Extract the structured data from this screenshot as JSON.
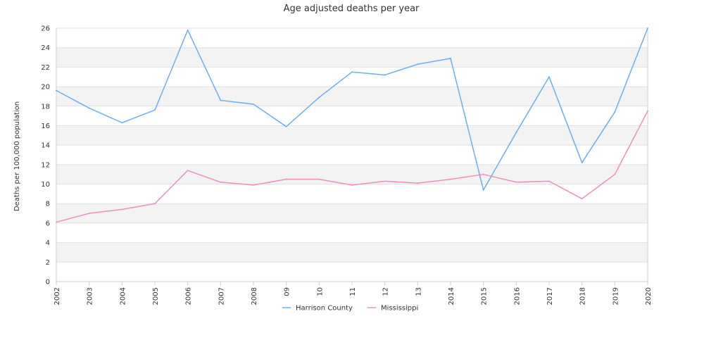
{
  "chart_data": {
    "type": "line",
    "title": "Age adjusted deaths per year",
    "xlabel": "",
    "ylabel": "Deaths per 100,000 population",
    "categories": [
      "2002",
      "2003",
      "2004",
      "2005",
      "2006",
      "2007",
      "2008",
      "09",
      "10",
      "11",
      "12",
      "13",
      "2014",
      "2015",
      "2016",
      "2017",
      "2018",
      "2019",
      "2020"
    ],
    "ylim": [
      0,
      26
    ],
    "yticks": [
      0,
      2,
      4,
      6,
      8,
      10,
      12,
      14,
      16,
      18,
      20,
      22,
      24,
      26
    ],
    "grid": "horizontal alternating bands",
    "legend_position": "bottom",
    "series": [
      {
        "name": "Harrison County",
        "color": "#6aaef0",
        "values": [
          19.6,
          17.8,
          16.3,
          17.6,
          25.8,
          18.6,
          18.2,
          15.9,
          18.9,
          21.5,
          21.2,
          22.3,
          22.9,
          9.4,
          15.3,
          21.0,
          12.2,
          17.4,
          26.0
        ]
      },
      {
        "name": "Mississippi",
        "color": "#f08cbf",
        "values": [
          6.1,
          7.0,
          7.4,
          8.0,
          11.4,
          10.2,
          9.9,
          10.5,
          10.5,
          9.9,
          10.3,
          10.1,
          10.5,
          11.0,
          10.2,
          10.3,
          8.5,
          11.0,
          17.5
        ]
      }
    ]
  }
}
